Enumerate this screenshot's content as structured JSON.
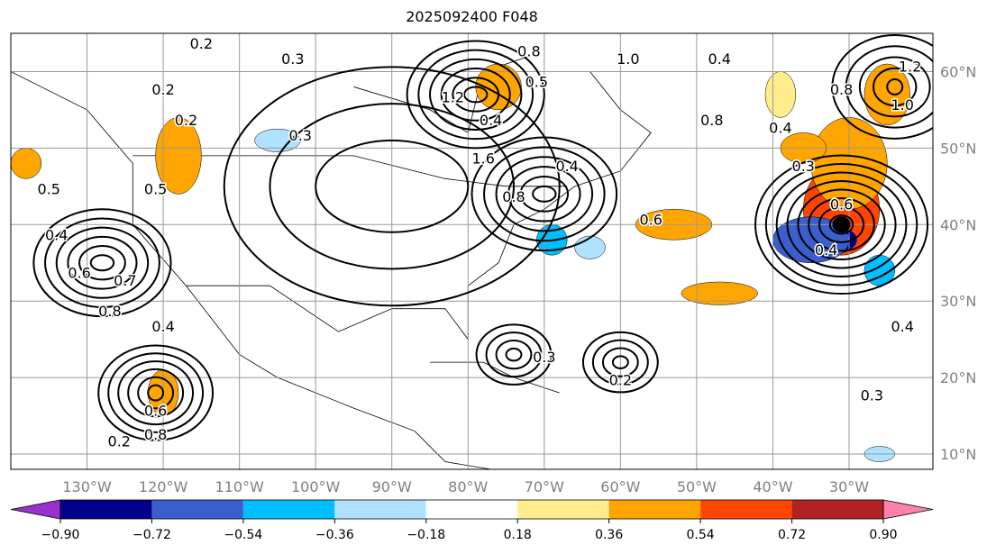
{
  "title": "2025092400 F048",
  "map": {
    "extent": {
      "lon": [
        -140,
        -19
      ],
      "lat": [
        8,
        65
      ]
    },
    "lon_ticks": [
      {
        "v": -130,
        "label": "130°W"
      },
      {
        "v": -120,
        "label": "120°W"
      },
      {
        "v": -110,
        "label": "110°W"
      },
      {
        "v": -100,
        "label": "100°W"
      },
      {
        "v": -90,
        "label": "90°W"
      },
      {
        "v": -80,
        "label": "80°W"
      },
      {
        "v": -70,
        "label": "70°W"
      },
      {
        "v": -60,
        "label": "60°W"
      },
      {
        "v": -50,
        "label": "50°W"
      },
      {
        "v": -40,
        "label": "40°W"
      },
      {
        "v": -30,
        "label": "30°W"
      }
    ],
    "lat_ticks": [
      {
        "v": 60,
        "label": "60°N"
      },
      {
        "v": 50,
        "label": "50°N"
      },
      {
        "v": 40,
        "label": "40°N"
      },
      {
        "v": 30,
        "label": "30°N"
      },
      {
        "v": 20,
        "label": "20°N"
      },
      {
        "v": 10,
        "label": "10°N"
      }
    ],
    "anomalies": [
      {
        "lon": -31,
        "lat": 40,
        "rx": 4,
        "ry": 3,
        "value": 0.8
      },
      {
        "lon": -31,
        "lat": 42,
        "rx": 5,
        "ry": 6,
        "value": 0.6
      },
      {
        "lon": -33,
        "lat": 38,
        "rx": 4,
        "ry": 2,
        "value": -0.8
      },
      {
        "lon": -35,
        "lat": 38,
        "rx": 5,
        "ry": 3,
        "value": -0.6
      },
      {
        "lon": -30,
        "lat": 48,
        "rx": 5,
        "ry": 6,
        "value": 0.5
      },
      {
        "lon": -36,
        "lat": 50,
        "rx": 3,
        "ry": 2,
        "value": 0.4
      },
      {
        "lon": -53,
        "lat": 40,
        "rx": 5,
        "ry": 2,
        "value": 0.5
      },
      {
        "lon": -118,
        "lat": 49,
        "rx": 3,
        "ry": 5,
        "value": 0.45
      },
      {
        "lon": -76,
        "lat": 58,
        "rx": 3,
        "ry": 3,
        "value": 0.4
      },
      {
        "lon": -25,
        "lat": 57,
        "rx": 3,
        "ry": 4,
        "value": 0.4
      },
      {
        "lon": -39,
        "lat": 57,
        "rx": 2,
        "ry": 3,
        "value": 0.3
      },
      {
        "lon": -47,
        "lat": 31,
        "rx": 5,
        "ry": 1.5,
        "value": 0.4
      },
      {
        "lon": -105,
        "lat": 51,
        "rx": 3,
        "ry": 1.5,
        "value": -0.3
      },
      {
        "lon": -69,
        "lat": 38,
        "rx": 2,
        "ry": 2,
        "value": -0.4
      },
      {
        "lon": -64,
        "lat": 37,
        "rx": 2,
        "ry": 1.5,
        "value": -0.3
      },
      {
        "lon": -26,
        "lat": 34,
        "rx": 2,
        "ry": 2,
        "value": -0.4
      },
      {
        "lon": -138,
        "lat": 48,
        "rx": 2,
        "ry": 2,
        "value": 0.4
      },
      {
        "lon": -120,
        "lat": 18,
        "rx": 2,
        "ry": 3,
        "value": 0.45
      },
      {
        "lon": -26,
        "lat": 10,
        "rx": 2,
        "ry": 1,
        "value": -0.3
      }
    ],
    "contours": [
      {
        "lon": -31,
        "lat": 40,
        "n": 8,
        "rx": 1.5,
        "ry": 1.2,
        "step": 1.4
      },
      {
        "lon": -79,
        "lat": 57,
        "n": 6,
        "rx": 1.5,
        "ry": 1,
        "step": 1.5
      },
      {
        "lon": -128,
        "lat": 35,
        "n": 6,
        "rx": 1.5,
        "ry": 1,
        "step": 1.5
      },
      {
        "lon": -121,
        "lat": 18,
        "n": 6,
        "rx": 1,
        "ry": 1,
        "step": 1.3
      },
      {
        "lon": -70,
        "lat": 44,
        "n": 6,
        "rx": 1.5,
        "ry": 1,
        "step": 1.6
      },
      {
        "lon": -74,
        "lat": 23,
        "n": 4,
        "rx": 1,
        "ry": 0.8,
        "step": 1.3
      },
      {
        "lon": -60,
        "lat": 22,
        "n": 4,
        "rx": 1,
        "ry": 0.8,
        "step": 1.3
      },
      {
        "lon": -24,
        "lat": 58,
        "n": 5,
        "rx": 1,
        "ry": 1,
        "step": 1.8
      },
      {
        "lon": -90,
        "lat": 45,
        "n": 3,
        "rx": 10,
        "ry": 6,
        "step": 6
      }
    ],
    "labels": [
      {
        "lon": -115,
        "lat": 63,
        "text": "0.2"
      },
      {
        "lon": -120,
        "lat": 57,
        "text": "0.2"
      },
      {
        "lon": -103,
        "lat": 61,
        "text": "0.3"
      },
      {
        "lon": -117,
        "lat": 53,
        "text": "0.2"
      },
      {
        "lon": -102,
        "lat": 51,
        "text": "0.3"
      },
      {
        "lon": -135,
        "lat": 44,
        "text": "0.5"
      },
      {
        "lon": -121,
        "lat": 44,
        "text": "0.5"
      },
      {
        "lon": -134,
        "lat": 38,
        "text": "0.4"
      },
      {
        "lon": -131,
        "lat": 33,
        "text": "0.6"
      },
      {
        "lon": -125,
        "lat": 32,
        "text": "0.7"
      },
      {
        "lon": -127,
        "lat": 28,
        "text": "0.8"
      },
      {
        "lon": -120,
        "lat": 26,
        "text": "0.4"
      },
      {
        "lon": -121,
        "lat": 15,
        "text": "0.6"
      },
      {
        "lon": -121,
        "lat": 14,
        "text": "0.8"
      },
      {
        "lon": -124,
        "lat": 11,
        "text": "0.2"
      },
      {
        "lon": -72,
        "lat": 62,
        "text": "0.8"
      },
      {
        "lon": -82,
        "lat": 56,
        "text": "1.2"
      },
      {
        "lon": -71,
        "lat": 58,
        "text": "0.5"
      },
      {
        "lon": -77,
        "lat": 53,
        "text": "0.4"
      },
      {
        "lon": -78,
        "lat": 48,
        "text": "1.6"
      },
      {
        "lon": -67,
        "lat": 47,
        "text": "0.4"
      },
      {
        "lon": -74,
        "lat": 43,
        "text": "0.8"
      },
      {
        "lon": -59,
        "lat": 61,
        "text": "1.0"
      },
      {
        "lon": -47,
        "lat": 61,
        "text": "0.4"
      },
      {
        "lon": -48,
        "lat": 53,
        "text": "0.8"
      },
      {
        "lon": -39,
        "lat": 52,
        "text": "0.4"
      },
      {
        "lon": -36,
        "lat": 47,
        "text": "0.3"
      },
      {
        "lon": -31,
        "lat": 42,
        "text": "0.6"
      },
      {
        "lon": -56,
        "lat": 40,
        "text": "0.6"
      },
      {
        "lon": -33,
        "lat": 36,
        "text": "0.4"
      },
      {
        "lon": -31,
        "lat": 57,
        "text": "0.8"
      },
      {
        "lon": -22,
        "lat": 60,
        "text": "1.2"
      },
      {
        "lon": -23,
        "lat": 55,
        "text": "1.0"
      },
      {
        "lon": -23,
        "lat": 26,
        "text": "0.4"
      },
      {
        "lon": -27,
        "lat": 17,
        "text": "0.3"
      },
      {
        "lon": -70,
        "lat": 22,
        "text": "0.3"
      },
      {
        "lon": -60,
        "lat": 19,
        "text": "0.2"
      }
    ]
  },
  "colorbar": {
    "colors": [
      "#9932cc",
      "#00008b",
      "#3a5fcd",
      "#00bfff",
      "#b0e2ff",
      "#ffffff",
      "#ffec8b",
      "#ffa500",
      "#ff4500",
      "#b22222",
      "#ff82ab"
    ],
    "ticks": [
      "−0.90",
      "−0.72",
      "−0.54",
      "−0.36",
      "−0.18",
      "0.18",
      "0.36",
      "0.54",
      "0.72",
      "0.90"
    ]
  }
}
